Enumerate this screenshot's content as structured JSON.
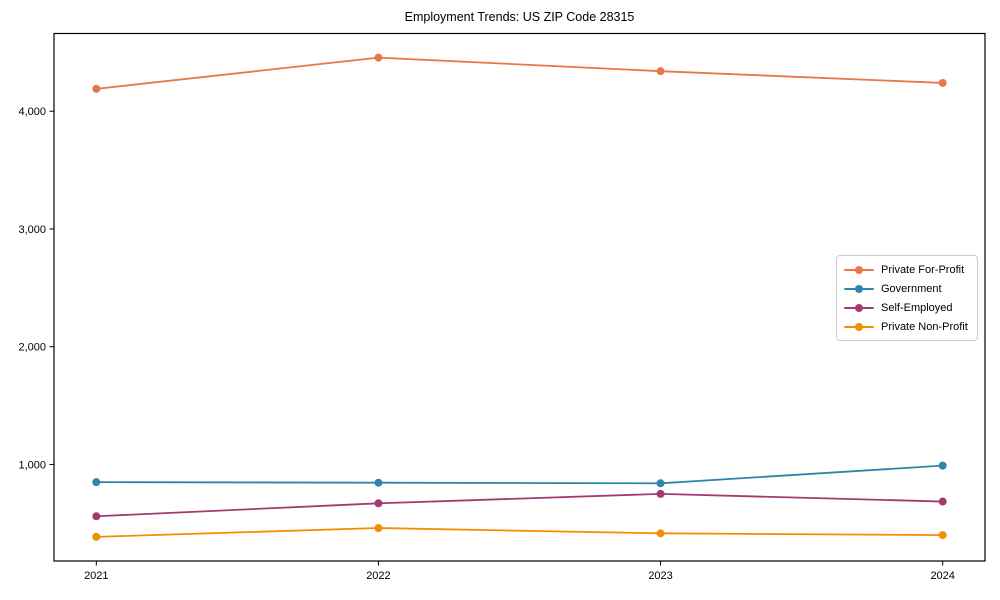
{
  "title": "Employment Trends: US ZIP Code 28315",
  "chart_data": {
    "type": "line",
    "title": "Employment Trends: US ZIP Code 28315",
    "categories": [
      "2021",
      "2022",
      "2023",
      "2024"
    ],
    "series": [
      {
        "name": "Private For-Profit",
        "color": "#E8764A",
        "values": [
          4190,
          4455,
          4340,
          4240
        ]
      },
      {
        "name": "Government",
        "color": "#2E86AB",
        "values": [
          850,
          845,
          840,
          990
        ]
      },
      {
        "name": "Self-Employed",
        "color": "#A23B72",
        "values": [
          560,
          670,
          750,
          685
        ]
      },
      {
        "name": "Private Non-Profit",
        "color": "#F18F01",
        "values": [
          385,
          460,
          415,
          400
        ]
      }
    ],
    "xlabel": "",
    "ylabel": "",
    "yticks": [
      1000,
      2000,
      3000,
      4000
    ],
    "ytick_labels": [
      "1,000",
      "2,000",
      "3,000",
      "4,000"
    ],
    "ylim": [
      180,
      4660
    ],
    "grid": false,
    "legend_position": "center-right",
    "marker": "circle",
    "frame": true,
    "background": "#ffffff"
  }
}
